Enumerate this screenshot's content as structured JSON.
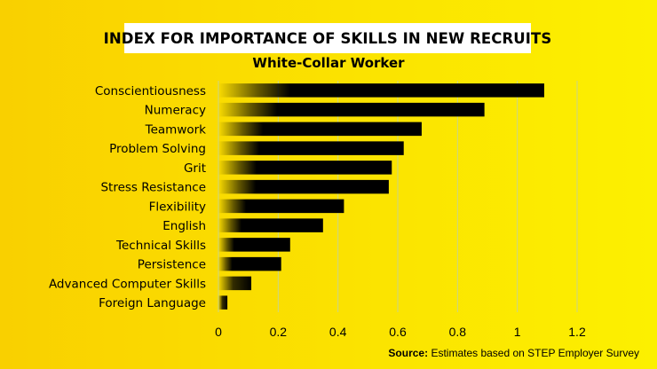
{
  "title": "INDEX FOR IMPORTANCE OF SKILLS IN NEW RECRUITS",
  "subtitle": "White-Collar Worker",
  "source": {
    "label": "Source:",
    "text": "Estimates based on STEP Employer Survey"
  },
  "colors": {
    "background": "#fadd00",
    "bar": "#000000",
    "grid": "#c9d48a",
    "title_box": "#ffffff"
  },
  "chart_data": {
    "type": "bar",
    "orientation": "horizontal",
    "categories": [
      "Conscientiousness",
      "Numeracy",
      "Teamwork",
      "Problem Solving",
      "Grit",
      "Stress Resistance",
      "Flexibility",
      "English",
      "Technical Skills",
      "Persistence",
      "Advanced Computer Skills",
      "Foreign Language"
    ],
    "values": [
      1.09,
      0.89,
      0.68,
      0.62,
      0.58,
      0.57,
      0.42,
      0.35,
      0.24,
      0.21,
      0.11,
      0.03
    ],
    "xlim": [
      0,
      1.2
    ],
    "xticks": [
      "0",
      "0.2",
      "0.4",
      "0.6",
      "0.8",
      "1",
      "1.2"
    ],
    "grid": true
  }
}
